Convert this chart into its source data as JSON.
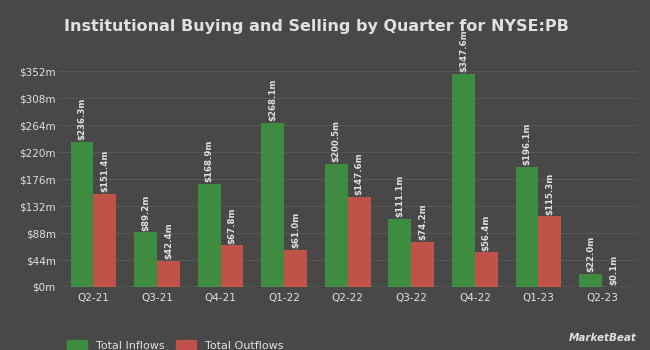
{
  "title": "Institutional Buying and Selling by Quarter for NYSE:PB",
  "quarters": [
    "Q2-21",
    "Q3-21",
    "Q4-21",
    "Q1-22",
    "Q2-22",
    "Q3-22",
    "Q4-22",
    "Q1-23",
    "Q2-23"
  ],
  "inflows": [
    236.3,
    89.2,
    168.9,
    268.1,
    200.5,
    111.1,
    347.6,
    196.1,
    22.0
  ],
  "outflows": [
    151.4,
    42.4,
    67.8,
    61.0,
    147.6,
    74.2,
    56.4,
    115.3,
    0.1
  ],
  "inflow_labels": [
    "$236.3m",
    "$89.2m",
    "$168.9m",
    "$268.1m",
    "$200.5m",
    "$111.1m",
    "$347.6m",
    "$196.1m",
    "$22.0m"
  ],
  "outflow_labels": [
    "$151.4m",
    "$42.4m",
    "$67.8m",
    "$61.0m",
    "$147.6m",
    "$74.2m",
    "$56.4m",
    "$115.3m",
    "$0.1m"
  ],
  "inflow_color": "#3d8c40",
  "outflow_color": "#c0524a",
  "background_color": "#484848",
  "grid_color": "#5a5a5a",
  "text_color": "#e0e0e0",
  "yticks": [
    0,
    44,
    88,
    132,
    176,
    220,
    264,
    308,
    352
  ],
  "ytick_labels": [
    "$0m",
    "$44m",
    "$88m",
    "$132m",
    "$176m",
    "$220m",
    "$264m",
    "$308m",
    "$352m"
  ],
  "ylim": [
    0,
    400
  ],
  "bar_width": 0.36,
  "title_fontsize": 11.5,
  "label_fontsize": 6.2,
  "tick_fontsize": 7.5,
  "legend_fontsize": 8
}
